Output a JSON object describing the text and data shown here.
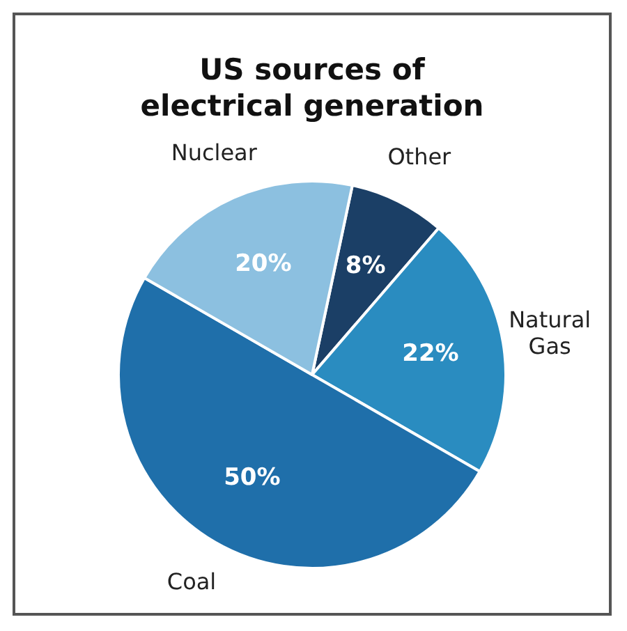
{
  "chart_data": {
    "type": "pie",
    "title": "US sources of electrical generation",
    "categories": [
      "Other",
      "Natural Gas",
      "Coal",
      "Nuclear"
    ],
    "values": [
      8,
      22,
      50,
      20
    ],
    "colors": [
      "#1b3f66",
      "#2a8cc0",
      "#1f6faa",
      "#8cc0e0"
    ],
    "value_labels": [
      "8%",
      "22%",
      "50%",
      "20%"
    ],
    "legend": false
  }
}
